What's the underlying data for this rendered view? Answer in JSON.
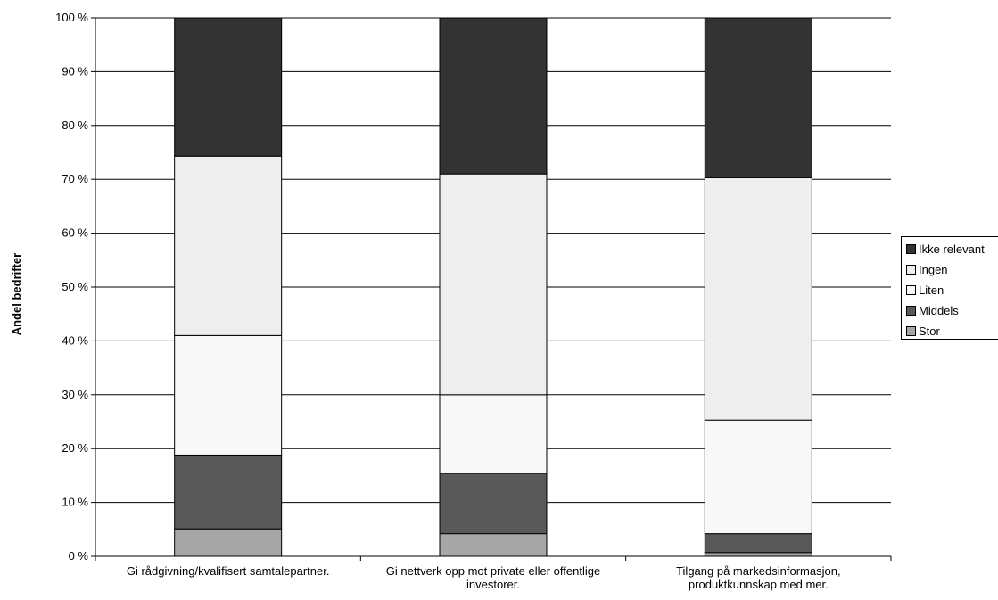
{
  "chart_data": {
    "type": "bar",
    "stacked": true,
    "percent": true,
    "title": "",
    "xlabel": "",
    "ylabel": "Andel bedrifter",
    "ylim": [
      0,
      100
    ],
    "yticks": [
      "0 %",
      "10 %",
      "20 %",
      "30 %",
      "40 %",
      "50 %",
      "60 %",
      "70 %",
      "80 %",
      "90 %",
      "100 %"
    ],
    "grid": true,
    "legend_position": "right",
    "categories": [
      [
        "Gi rådgivning/kvalifisert samtalepartner."
      ],
      [
        "Gi nettverk opp mot private eller offentlige",
        "investorer."
      ],
      [
        "Tilgang på markedsinformasjon,",
        "produktkunnskap med mer."
      ]
    ],
    "series": [
      {
        "name": "Stor",
        "color": "#a6a6a6",
        "values": [
          5.1,
          4.2,
          0.7
        ]
      },
      {
        "name": "Middels",
        "color": "#595959",
        "values": [
          13.7,
          11.2,
          3.5
        ]
      },
      {
        "name": "Liten",
        "color": "#f8f8f8",
        "values": [
          22.2,
          14.6,
          21.1
        ]
      },
      {
        "name": "Ingen",
        "color": "#eeeeee",
        "values": [
          33.3,
          41.0,
          45.0
        ]
      },
      {
        "name": "Ikke relevant",
        "color": "#333333",
        "values": [
          25.7,
          29.0,
          29.7
        ]
      }
    ]
  }
}
